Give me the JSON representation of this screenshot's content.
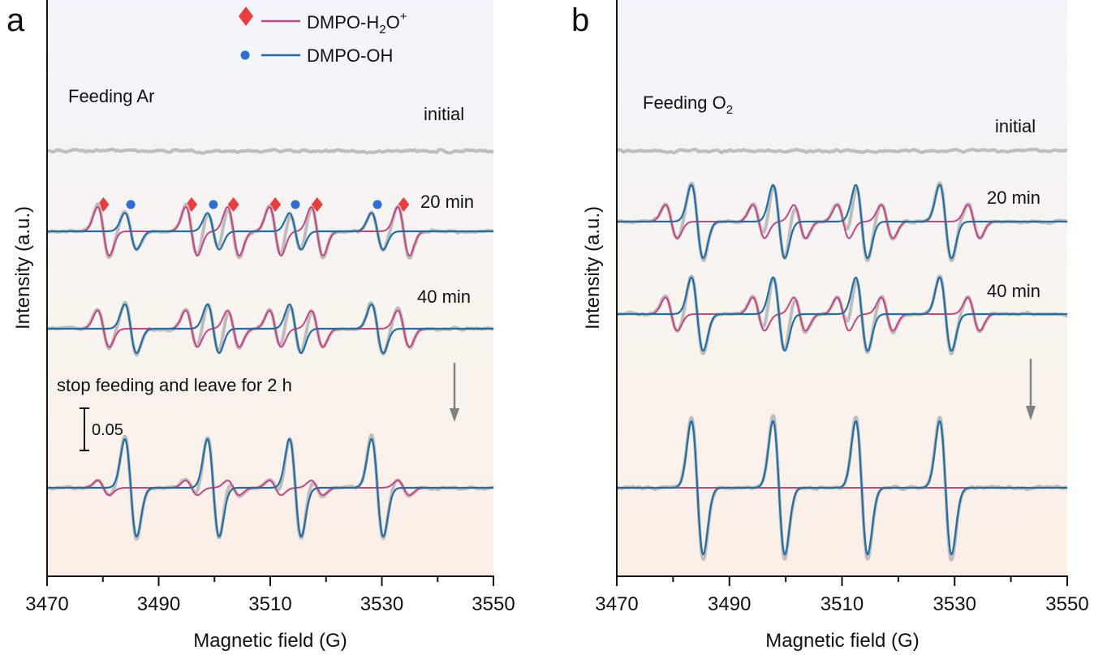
{
  "chart_data": [
    {
      "type": "line",
      "panel": "a",
      "title": "Feeding Ar",
      "xlabel": "Magnetic field (G)",
      "ylabel": "Intensity (a.u.)",
      "xlim": [
        3470,
        3550
      ],
      "xticks": [
        3470,
        3490,
        3510,
        3530,
        3550
      ],
      "legend": [
        {
          "name": "DMPO-H2O+",
          "label_main": "DMPO-H",
          "sub": "2",
          "label_mid": "O",
          "sup": "+",
          "color": "#c9447f",
          "marker": "diamond",
          "marker_color": "#ee3b3b"
        },
        {
          "name": "DMPO-OH",
          "label_main": "DMPO-OH",
          "color": "#1f6fa5",
          "marker": "circle",
          "marker_color": "#2c6ed8"
        }
      ],
      "h2o_positions": [
        3480.1,
        3495.9,
        3503.4,
        3510.9,
        3518.4,
        3533.9
      ],
      "oh_positions": [
        3485.0,
        3499.8,
        3514.5,
        3529.2
      ],
      "traces": [
        {
          "label": "initial",
          "h2o_amp": 0.0,
          "oh_amp": 0.0
        },
        {
          "label": "20 min",
          "h2o_amp": 0.06,
          "oh_amp": 0.045
        },
        {
          "label": "40 min",
          "h2o_amp": 0.045,
          "oh_amp": 0.06
        },
        {
          "label": "",
          "h2o_amp": 0.018,
          "oh_amp": 0.12
        }
      ],
      "annotation": "stop feeding and leave for 2 h",
      "scale_bar_label": "0.05",
      "scale_bar_value": 0.05
    },
    {
      "type": "line",
      "panel": "b",
      "title_main": "Feeding O",
      "title_sub": "2",
      "xlabel": "Magnetic field (G)",
      "ylabel": "Intensity (a.u.)",
      "xlim": [
        3470,
        3550
      ],
      "xticks": [
        3470,
        3490,
        3510,
        3530,
        3550
      ],
      "h2o_positions": [
        3479.7,
        3495.2,
        3502.5,
        3510.2,
        3518.0,
        3533.4
      ],
      "oh_positions": [
        3484.3,
        3498.8,
        3513.5,
        3528.4
      ],
      "traces": [
        {
          "label": "initial",
          "h2o_amp": 0.0,
          "oh_amp": 0.0
        },
        {
          "label": "20 min",
          "h2o_amp": 0.05,
          "oh_amp": 0.11
        },
        {
          "label": "40 min",
          "h2o_amp": 0.05,
          "oh_amp": 0.11
        },
        {
          "label": "",
          "h2o_amp": 0.0,
          "oh_amp": 0.2
        }
      ]
    }
  ]
}
